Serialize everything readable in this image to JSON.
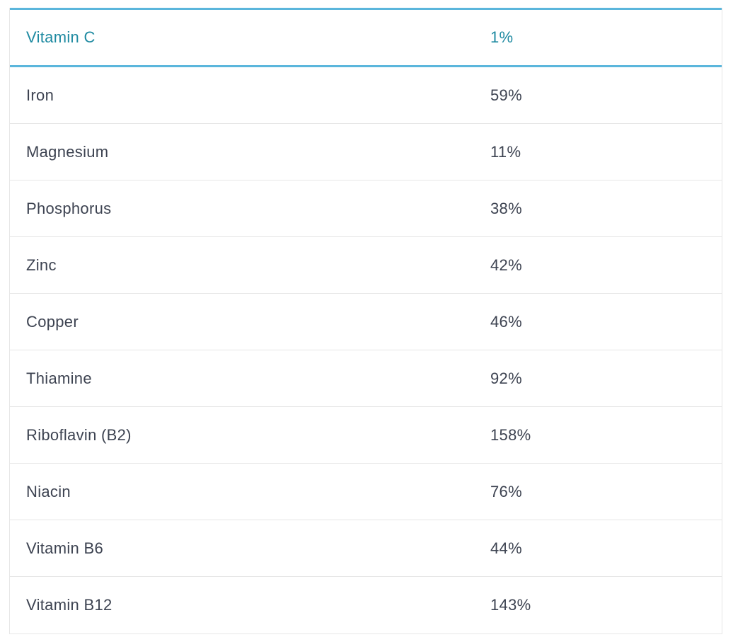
{
  "nutrients": {
    "highlighted": {
      "name": "Vitamin C",
      "value": "1%"
    },
    "rows": [
      {
        "name": "Iron",
        "value": "59%"
      },
      {
        "name": "Magnesium",
        "value": "11%"
      },
      {
        "name": "Phosphorus",
        "value": "38%"
      },
      {
        "name": "Zinc",
        "value": "42%"
      },
      {
        "name": "Copper",
        "value": "46%"
      },
      {
        "name": "Thiamine",
        "value": "92%"
      },
      {
        "name": "Riboflavin (B2)",
        "value": "158%"
      },
      {
        "name": "Niacin",
        "value": "76%"
      },
      {
        "name": "Vitamin B6",
        "value": "44%"
      },
      {
        "name": "Vitamin B12",
        "value": "143%"
      }
    ]
  },
  "colors": {
    "accent": "#5bb6dc",
    "highlight_text": "#1e8aa1",
    "text": "#3d4351",
    "divider": "#e6e6e6"
  }
}
